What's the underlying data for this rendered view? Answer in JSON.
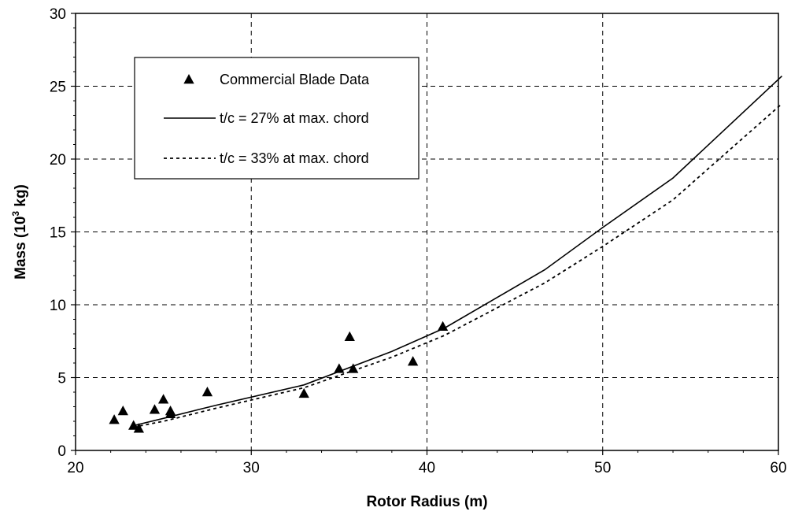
{
  "chart_data": {
    "type": "line",
    "title": "",
    "xlabel": "Rotor Radius (m)",
    "ylabel_main": "Mass (10",
    "ylabel_sup": "3",
    "ylabel_tail": " kg)",
    "xlim": [
      20,
      60
    ],
    "ylim": [
      0,
      30
    ],
    "x_ticks": [
      20,
      30,
      40,
      50,
      60
    ],
    "y_ticks": [
      0,
      5,
      10,
      15,
      20,
      25,
      30
    ],
    "grid": true,
    "legend_position": "upper-left",
    "series": [
      {
        "name": "Commercial Blade Data",
        "kind": "scatter",
        "marker": "triangle",
        "color": "#000000",
        "points": [
          [
            22.2,
            2.1
          ],
          [
            22.7,
            2.7
          ],
          [
            23.3,
            1.7
          ],
          [
            23.6,
            1.5
          ],
          [
            24.5,
            2.8
          ],
          [
            25.0,
            3.5
          ],
          [
            25.4,
            2.5
          ],
          [
            25.4,
            2.7
          ],
          [
            27.5,
            4.0
          ],
          [
            33.0,
            3.9
          ],
          [
            35.0,
            5.6
          ],
          [
            35.6,
            7.8
          ],
          [
            35.8,
            5.6
          ],
          [
            39.2,
            6.1
          ],
          [
            40.9,
            8.5
          ]
        ]
      },
      {
        "name": "t/c = 27% at max. chord",
        "kind": "line",
        "style": "solid",
        "color": "#000000",
        "points": [
          [
            23.3,
            1.7
          ],
          [
            25.0,
            2.2
          ],
          [
            28.0,
            3.1
          ],
          [
            33.0,
            4.5
          ],
          [
            38.0,
            6.8
          ],
          [
            41.0,
            8.4
          ],
          [
            46.7,
            12.4
          ],
          [
            50.0,
            15.3
          ],
          [
            54.0,
            18.7
          ],
          [
            60.2,
            25.7
          ]
        ]
      },
      {
        "name": "t/c = 33% at max. chord",
        "kind": "line",
        "style": "dashed",
        "color": "#000000",
        "points": [
          [
            23.3,
            1.6
          ],
          [
            25.0,
            2.0
          ],
          [
            28.0,
            2.9
          ],
          [
            33.0,
            4.3
          ],
          [
            38.0,
            6.4
          ],
          [
            41.0,
            7.9
          ],
          [
            46.7,
            11.5
          ],
          [
            50.0,
            14.0
          ],
          [
            54.0,
            17.2
          ],
          [
            60.2,
            23.8
          ]
        ]
      }
    ]
  }
}
